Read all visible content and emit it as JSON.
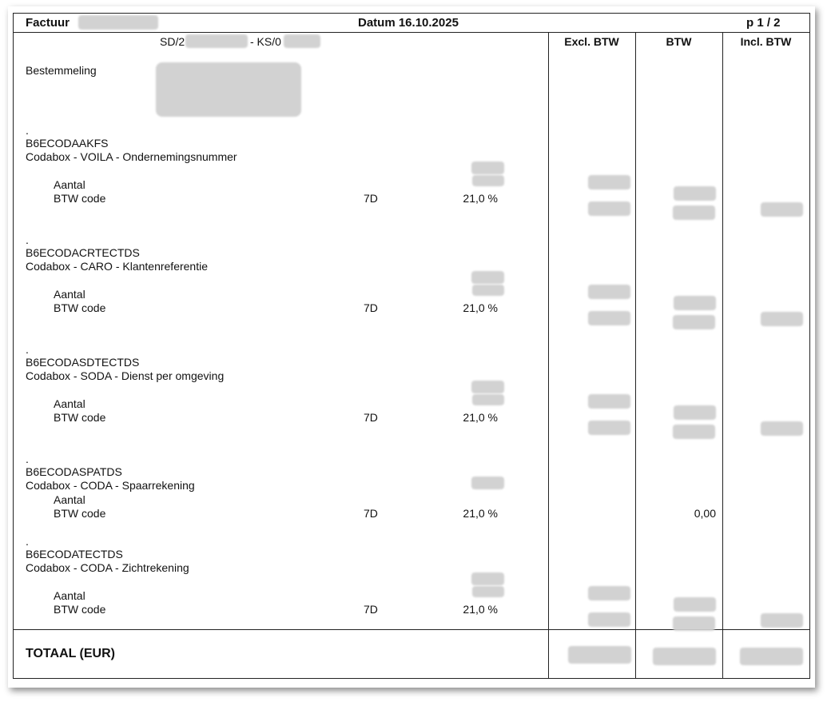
{
  "header": {
    "title": "Factuur",
    "date": "Datum 16.10.2025",
    "page": "p 1 / 2",
    "reference_prefix": "SD/2",
    "reference_mid": "- KS/0"
  },
  "columns": {
    "excl": "Excl. BTW",
    "vat": "BTW",
    "incl": "Incl. BTW"
  },
  "recipient_label": "Bestemmeling",
  "items": [
    {
      "marker": ".",
      "code": "B6ECODAAKFS",
      "description": "Codabox - VOILA - Ondernemingsnummer",
      "quantity_label": "Aantal",
      "vat_code_label": "BTW code",
      "vat_code": "7D",
      "vat_rate": "21,0 %"
    },
    {
      "marker": ".",
      "code": "B6ECODACRTECTDS",
      "description": "Codabox - CARO - Klantenreferentie",
      "quantity_label": "Aantal",
      "vat_code_label": "BTW code",
      "vat_code": "7D",
      "vat_rate": "21,0 %"
    },
    {
      "marker": ".",
      "code": "B6ECODASDTECTDS",
      "description": "Codabox - SODA - Dienst per omgeving",
      "quantity_label": "Aantal",
      "vat_code_label": "BTW code",
      "vat_code": "7D",
      "vat_rate": "21,0 %"
    },
    {
      "marker": ".",
      "code": "B6ECODASPATDS",
      "description": "Codabox - CODA - Spaarrekening",
      "quantity_label": "Aantal",
      "vat_code_label": "BTW code",
      "vat_code": "7D",
      "vat_rate": "21,0 %",
      "vat_amount": "0,00"
    },
    {
      "marker": ".",
      "code": "B6ECODATECTDS",
      "description": "Codabox - CODA - Zichtrekening",
      "quantity_label": "Aantal",
      "vat_code_label": "BTW code",
      "vat_code": "7D",
      "vat_rate": "21,0 %"
    }
  ],
  "total_label": "TOTAAL (EUR)"
}
